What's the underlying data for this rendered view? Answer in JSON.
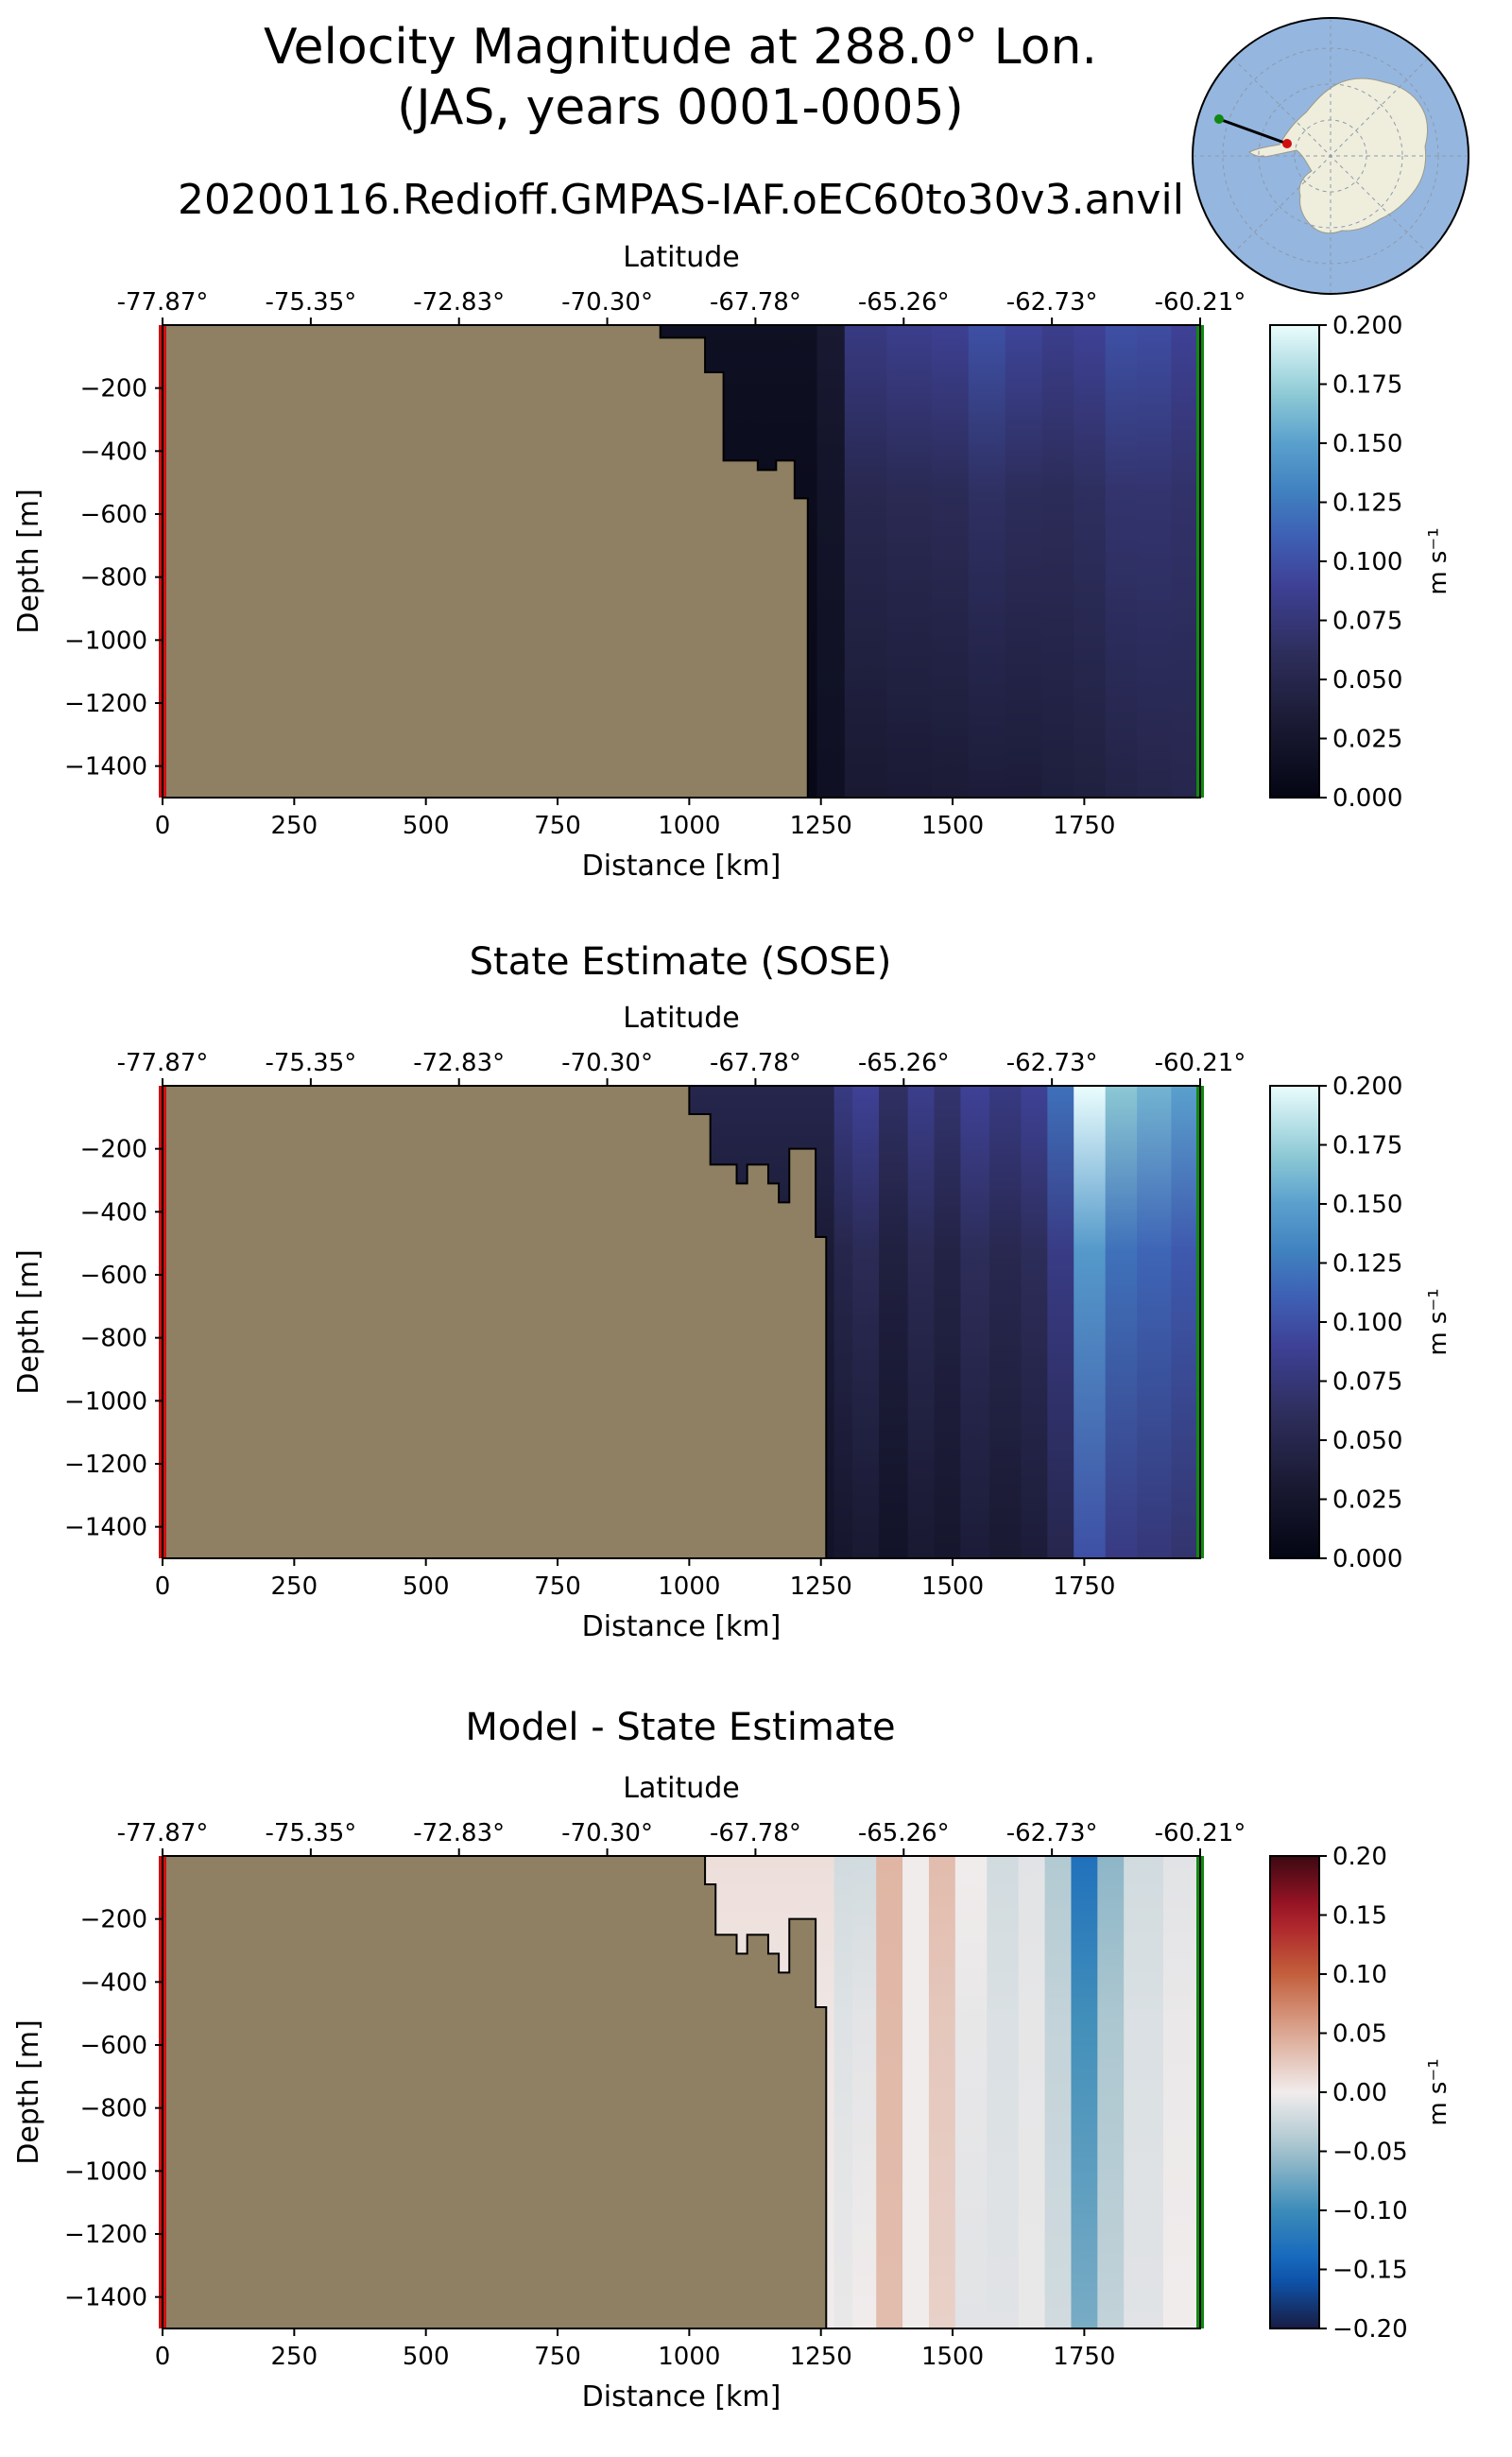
{
  "figure": {
    "title_line1": "Velocity Magnitude at 288.0° Lon.",
    "title_line2": "(JAS, years 0001-0005)",
    "run_name": "20200116.Redioff.GMPAS-IAF.oEC60to30v3.anvil"
  },
  "colors": {
    "land": "#8f8064",
    "start_marker": "#d01010",
    "end_marker": "#118811",
    "ocean_globe": "#95b6df",
    "antarctica": "#efeedd"
  },
  "chart_data": [
    {
      "type": "heatmap",
      "title": "",
      "xlabel": "Distance [km]",
      "ylabel": "Depth [m]",
      "top_xlabel": "Latitude",
      "xlim": [
        0,
        1970
      ],
      "ylim": [
        -1500,
        0
      ],
      "x_ticks": [
        0,
        250,
        500,
        750,
        1000,
        1250,
        1500,
        1750
      ],
      "y_ticks": [
        -200,
        -400,
        -600,
        -800,
        -1000,
        -1200,
        -1400
      ],
      "lat_ticks": [
        "-77.87°",
        "-75.35°",
        "-72.83°",
        "-70.30°",
        "-67.78°",
        "-65.26°",
        "-62.73°",
        "-60.21°"
      ],
      "colorbar": {
        "label": "m s⁻¹",
        "ticks": [
          "0.000",
          "0.025",
          "0.050",
          "0.075",
          "0.100",
          "0.125",
          "0.150",
          "0.175",
          "0.200"
        ],
        "range": [
          0,
          0.2
        ],
        "cmap": "ice"
      },
      "bathymetry": [
        [
          0,
          0
        ],
        [
          945,
          0
        ],
        [
          945,
          -40
        ],
        [
          1030,
          -40
        ],
        [
          1030,
          -150
        ],
        [
          1065,
          -150
        ],
        [
          1065,
          -430
        ],
        [
          1130,
          -430
        ],
        [
          1130,
          -460
        ],
        [
          1165,
          -460
        ],
        [
          1165,
          -430
        ],
        [
          1200,
          -430
        ],
        [
          1200,
          -550
        ],
        [
          1225,
          -550
        ],
        [
          1225,
          -1500
        ]
      ],
      "bathy_note": "bathymetry = seafloor depth [m] at distance [km]",
      "profile_x": [
        1225,
        1260,
        1330,
        1420,
        1500,
        1560,
        1640,
        1700,
        1760,
        1820,
        1880,
        1950
      ],
      "profile_top": [
        0.015,
        0.03,
        0.08,
        0.085,
        0.088,
        0.1,
        0.092,
        0.085,
        0.09,
        0.1,
        0.098,
        0.09
      ],
      "profile_bottom": [
        0.005,
        0.015,
        0.03,
        0.032,
        0.033,
        0.035,
        0.035,
        0.038,
        0.04,
        0.045,
        0.048,
        0.05
      ]
    },
    {
      "type": "heatmap",
      "title": "State Estimate (SOSE)",
      "xlabel": "Distance [km]",
      "ylabel": "Depth [m]",
      "top_xlabel": "Latitude",
      "xlim": [
        0,
        1970
      ],
      "ylim": [
        -1500,
        0
      ],
      "x_ticks": [
        0,
        250,
        500,
        750,
        1000,
        1250,
        1500,
        1750
      ],
      "y_ticks": [
        -200,
        -400,
        -600,
        -800,
        -1000,
        -1200,
        -1400
      ],
      "lat_ticks": [
        "-77.87°",
        "-75.35°",
        "-72.83°",
        "-70.30°",
        "-67.78°",
        "-65.26°",
        "-62.73°",
        "-60.21°"
      ],
      "colorbar": {
        "label": "m s⁻¹",
        "ticks": [
          "0.000",
          "0.025",
          "0.050",
          "0.075",
          "0.100",
          "0.125",
          "0.150",
          "0.175",
          "0.200"
        ],
        "range": [
          0,
          0.2
        ],
        "cmap": "ice"
      },
      "bathymetry": [
        [
          0,
          0
        ],
        [
          1000,
          0
        ],
        [
          1000,
          -90
        ],
        [
          1040,
          -90
        ],
        [
          1040,
          -250
        ],
        [
          1090,
          -250
        ],
        [
          1090,
          -310
        ],
        [
          1110,
          -310
        ],
        [
          1110,
          -250
        ],
        [
          1150,
          -250
        ],
        [
          1150,
          -310
        ],
        [
          1170,
          -310
        ],
        [
          1170,
          -370
        ],
        [
          1190,
          -370
        ],
        [
          1190,
          -200
        ],
        [
          1240,
          -200
        ],
        [
          1240,
          -480
        ],
        [
          1260,
          -480
        ],
        [
          1260,
          -1500
        ]
      ],
      "bathy_note": "bathymetry = seafloor depth [m] at distance [km]",
      "profile_x": [
        1260,
        1290,
        1330,
        1390,
        1440,
        1490,
        1540,
        1600,
        1660,
        1700,
        1760,
        1820,
        1880,
        1950
      ],
      "profile_top": [
        0.05,
        0.08,
        0.09,
        0.065,
        0.085,
        0.07,
        0.09,
        0.08,
        0.09,
        0.12,
        0.2,
        0.17,
        0.16,
        0.15
      ],
      "profile_bottom": [
        0.02,
        0.025,
        0.03,
        0.02,
        0.03,
        0.025,
        0.035,
        0.03,
        0.035,
        0.05,
        0.1,
        0.08,
        0.075,
        0.07
      ]
    },
    {
      "type": "heatmap",
      "title": "Model - State Estimate",
      "xlabel": "Distance [km]",
      "ylabel": "Depth [m]",
      "top_xlabel": "Latitude",
      "xlim": [
        0,
        1970
      ],
      "ylim": [
        -1500,
        0
      ],
      "x_ticks": [
        0,
        250,
        500,
        750,
        1000,
        1250,
        1500,
        1750
      ],
      "y_ticks": [
        -200,
        -400,
        -600,
        -800,
        -1000,
        -1200,
        -1400
      ],
      "lat_ticks": [
        "-77.87°",
        "-75.35°",
        "-72.83°",
        "-70.30°",
        "-67.78°",
        "-65.26°",
        "-62.73°",
        "-60.21°"
      ],
      "colorbar": {
        "label": "m s⁻¹",
        "ticks": [
          "0.20",
          "0.15",
          "0.10",
          "0.05",
          "0.00",
          "−0.05",
          "−0.10",
          "−0.15",
          "−0.20"
        ],
        "range": [
          -0.2,
          0.2
        ],
        "cmap": "balance"
      },
      "bathymetry": [
        [
          0,
          0
        ],
        [
          1030,
          0
        ],
        [
          1030,
          -90
        ],
        [
          1050,
          -90
        ],
        [
          1050,
          -250
        ],
        [
          1090,
          -250
        ],
        [
          1090,
          -310
        ],
        [
          1110,
          -310
        ],
        [
          1110,
          -250
        ],
        [
          1150,
          -250
        ],
        [
          1150,
          -310
        ],
        [
          1170,
          -310
        ],
        [
          1170,
          -370
        ],
        [
          1190,
          -370
        ],
        [
          1190,
          -200
        ],
        [
          1240,
          -200
        ],
        [
          1240,
          -480
        ],
        [
          1260,
          -480
        ],
        [
          1260,
          -1500
        ]
      ],
      "bathy_note": "bathymetry = seafloor depth [m] at distance [km]",
      "profile_x": [
        1260,
        1290,
        1330,
        1380,
        1430,
        1480,
        1530,
        1600,
        1650,
        1700,
        1750,
        1800,
        1850,
        1950
      ],
      "profile_top": [
        0.01,
        -0.02,
        -0.02,
        0.04,
        0.0,
        0.035,
        0.0,
        -0.02,
        -0.01,
        -0.04,
        -0.13,
        -0.06,
        -0.02,
        -0.01
      ],
      "profile_bottom": [
        0.0,
        -0.005,
        0.0,
        0.035,
        0.0,
        0.02,
        -0.01,
        -0.01,
        -0.005,
        -0.02,
        -0.07,
        -0.03,
        -0.01,
        0.0
      ]
    }
  ]
}
